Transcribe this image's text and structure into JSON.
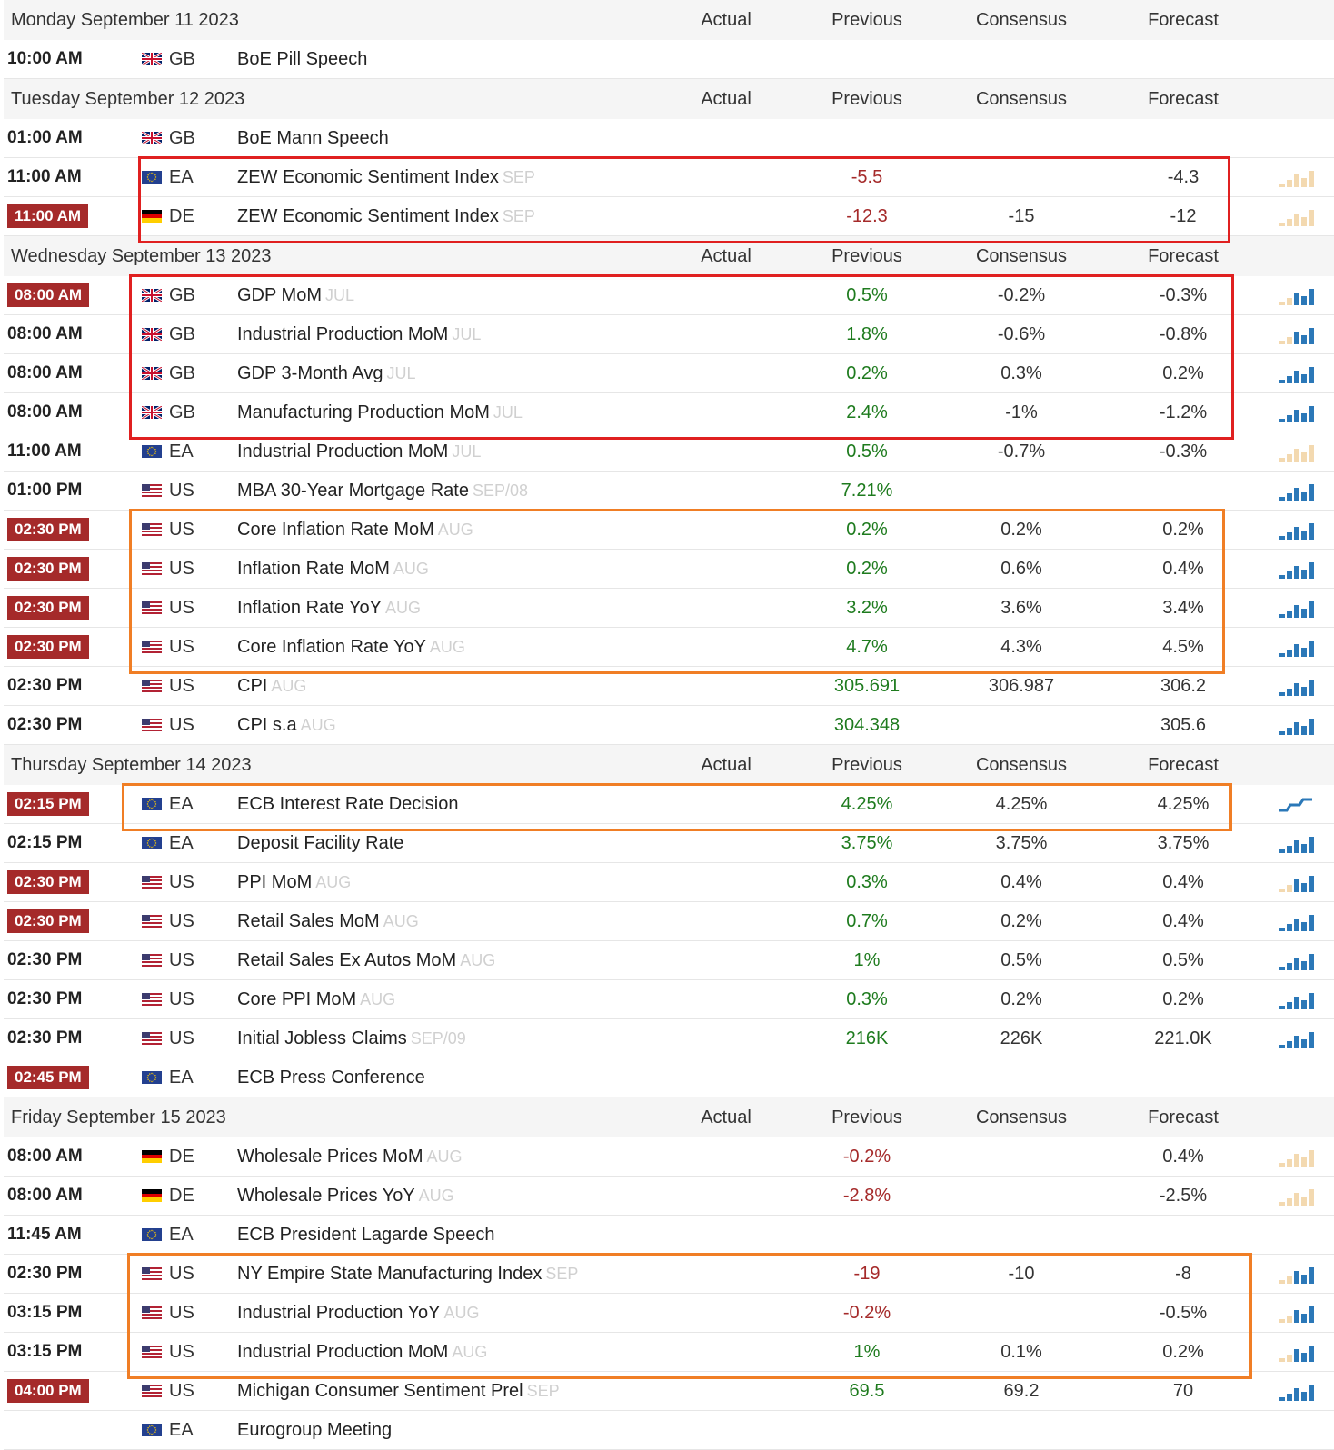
{
  "columns": {
    "actual": "Actual",
    "previous": "Previous",
    "consensus": "Consensus",
    "forecast": "Forecast"
  },
  "days": [
    {
      "title": "Monday September 11 2023",
      "events": [
        {
          "time": "10:00 AM",
          "hl": false,
          "country": "GB",
          "flag": "gb",
          "event": "BoE Pill Speech",
          "ref": "",
          "previous": "",
          "prev_tone": "",
          "consensus": "",
          "forecast": "",
          "spark": ""
        }
      ]
    },
    {
      "title": "Tuesday September 12 2023",
      "events": [
        {
          "time": "01:00 AM",
          "hl": false,
          "country": "GB",
          "flag": "gb",
          "event": "BoE Mann Speech",
          "ref": "",
          "previous": "",
          "prev_tone": "",
          "consensus": "",
          "forecast": "",
          "spark": ""
        },
        {
          "time": "11:00 AM",
          "hl": false,
          "country": "EA",
          "flag": "eu",
          "event": "ZEW Economic Sentiment Index",
          "ref": "SEP",
          "previous": "-5.5",
          "prev_tone": "neg",
          "consensus": "",
          "forecast": "-4.3",
          "spark": "tan"
        },
        {
          "time": "11:00 AM",
          "hl": true,
          "country": "DE",
          "flag": "de",
          "event": "ZEW Economic Sentiment Index",
          "ref": "SEP",
          "previous": "-12.3",
          "prev_tone": "neg",
          "consensus": "-15",
          "forecast": "-12",
          "spark": "tan"
        }
      ]
    },
    {
      "title": "Wednesday September 13 2023",
      "events": [
        {
          "time": "08:00 AM",
          "hl": true,
          "country": "GB",
          "flag": "gb",
          "event": "GDP MoM",
          "ref": "JUL",
          "previous": "0.5%",
          "prev_tone": "pos",
          "consensus": "-0.2%",
          "forecast": "-0.3%",
          "spark": "mix"
        },
        {
          "time": "08:00 AM",
          "hl": false,
          "country": "GB",
          "flag": "gb",
          "event": "Industrial Production MoM",
          "ref": "JUL",
          "previous": "1.8%",
          "prev_tone": "pos",
          "consensus": "-0.6%",
          "forecast": "-0.8%",
          "spark": "mix"
        },
        {
          "time": "08:00 AM",
          "hl": false,
          "country": "GB",
          "flag": "gb",
          "event": "GDP 3-Month Avg",
          "ref": "JUL",
          "previous": "0.2%",
          "prev_tone": "pos",
          "consensus": "0.3%",
          "forecast": "0.2%",
          "spark": "blue"
        },
        {
          "time": "08:00 AM",
          "hl": false,
          "country": "GB",
          "flag": "gb",
          "event": "Manufacturing Production MoM",
          "ref": "JUL",
          "previous": "2.4%",
          "prev_tone": "pos",
          "consensus": "-1%",
          "forecast": "-1.2%",
          "spark": "blue"
        },
        {
          "time": "11:00 AM",
          "hl": false,
          "country": "EA",
          "flag": "eu",
          "event": "Industrial Production MoM",
          "ref": "JUL",
          "previous": "0.5%",
          "prev_tone": "pos",
          "consensus": "-0.7%",
          "forecast": "-0.3%",
          "spark": "tan"
        },
        {
          "time": "01:00 PM",
          "hl": false,
          "country": "US",
          "flag": "us",
          "event": "MBA 30-Year Mortgage Rate",
          "ref": "SEP/08",
          "previous": "7.21%",
          "prev_tone": "pos",
          "consensus": "",
          "forecast": "",
          "spark": "blue"
        },
        {
          "time": "02:30 PM",
          "hl": true,
          "country": "US",
          "flag": "us",
          "event": "Core Inflation Rate MoM",
          "ref": "AUG",
          "previous": "0.2%",
          "prev_tone": "pos",
          "consensus": "0.2%",
          "forecast": "0.2%",
          "spark": "blue"
        },
        {
          "time": "02:30 PM",
          "hl": true,
          "country": "US",
          "flag": "us",
          "event": "Inflation Rate MoM",
          "ref": "AUG",
          "previous": "0.2%",
          "prev_tone": "pos",
          "consensus": "0.6%",
          "forecast": "0.4%",
          "spark": "blue"
        },
        {
          "time": "02:30 PM",
          "hl": true,
          "country": "US",
          "flag": "us",
          "event": "Inflation Rate YoY",
          "ref": "AUG",
          "previous": "3.2%",
          "prev_tone": "pos",
          "consensus": "3.6%",
          "forecast": "3.4%",
          "spark": "blue"
        },
        {
          "time": "02:30 PM",
          "hl": true,
          "country": "US",
          "flag": "us",
          "event": "Core Inflation Rate YoY",
          "ref": "AUG",
          "previous": "4.7%",
          "prev_tone": "pos",
          "consensus": "4.3%",
          "forecast": "4.5%",
          "spark": "blue"
        },
        {
          "time": "02:30 PM",
          "hl": false,
          "country": "US",
          "flag": "us",
          "event": "CPI",
          "ref": "AUG",
          "previous": "305.691",
          "prev_tone": "pos",
          "consensus": "306.987",
          "forecast": "306.2",
          "spark": "blue"
        },
        {
          "time": "02:30 PM",
          "hl": false,
          "country": "US",
          "flag": "us",
          "event": "CPI s.a",
          "ref": "AUG",
          "previous": "304.348",
          "prev_tone": "pos",
          "consensus": "",
          "forecast": "305.6",
          "spark": "blue"
        }
      ]
    },
    {
      "title": "Thursday September 14 2023",
      "events": [
        {
          "time": "02:15 PM",
          "hl": true,
          "country": "EA",
          "flag": "eu",
          "event": "ECB Interest Rate Decision",
          "ref": "",
          "previous": "4.25%",
          "prev_tone": "pos",
          "consensus": "4.25%",
          "forecast": "4.25%",
          "spark": "step"
        },
        {
          "time": "02:15 PM",
          "hl": false,
          "country": "EA",
          "flag": "eu",
          "event": "Deposit Facility Rate",
          "ref": "",
          "previous": "3.75%",
          "prev_tone": "pos",
          "consensus": "3.75%",
          "forecast": "3.75%",
          "spark": "blue"
        },
        {
          "time": "02:30 PM",
          "hl": true,
          "country": "US",
          "flag": "us",
          "event": "PPI MoM",
          "ref": "AUG",
          "previous": "0.3%",
          "prev_tone": "pos",
          "consensus": "0.4%",
          "forecast": "0.4%",
          "spark": "mix"
        },
        {
          "time": "02:30 PM",
          "hl": true,
          "country": "US",
          "flag": "us",
          "event": "Retail Sales MoM",
          "ref": "AUG",
          "previous": "0.7%",
          "prev_tone": "pos",
          "consensus": "0.2%",
          "forecast": "0.4%",
          "spark": "blue"
        },
        {
          "time": "02:30 PM",
          "hl": false,
          "country": "US",
          "flag": "us",
          "event": "Retail Sales Ex Autos MoM",
          "ref": "AUG",
          "previous": "1%",
          "prev_tone": "pos",
          "consensus": "0.5%",
          "forecast": "0.5%",
          "spark": "blue"
        },
        {
          "time": "02:30 PM",
          "hl": false,
          "country": "US",
          "flag": "us",
          "event": "Core PPI MoM",
          "ref": "AUG",
          "previous": "0.3%",
          "prev_tone": "pos",
          "consensus": "0.2%",
          "forecast": "0.2%",
          "spark": "blue"
        },
        {
          "time": "02:30 PM",
          "hl": false,
          "country": "US",
          "flag": "us",
          "event": "Initial Jobless Claims",
          "ref": "SEP/09",
          "previous": "216K",
          "prev_tone": "pos",
          "consensus": "226K",
          "forecast": "221.0K",
          "spark": "blue"
        },
        {
          "time": "02:45 PM",
          "hl": true,
          "country": "EA",
          "flag": "eu",
          "event": "ECB Press Conference",
          "ref": "",
          "previous": "",
          "prev_tone": "",
          "consensus": "",
          "forecast": "",
          "spark": ""
        }
      ]
    },
    {
      "title": "Friday September 15 2023",
      "events": [
        {
          "time": "08:00 AM",
          "hl": false,
          "country": "DE",
          "flag": "de",
          "event": "Wholesale Prices MoM",
          "ref": "AUG",
          "previous": "-0.2%",
          "prev_tone": "neg",
          "consensus": "",
          "forecast": "0.4%",
          "spark": "tan"
        },
        {
          "time": "08:00 AM",
          "hl": false,
          "country": "DE",
          "flag": "de",
          "event": "Wholesale Prices YoY",
          "ref": "AUG",
          "previous": "-2.8%",
          "prev_tone": "neg",
          "consensus": "",
          "forecast": "-2.5%",
          "spark": "tan"
        },
        {
          "time": "11:45 AM",
          "hl": false,
          "country": "EA",
          "flag": "eu",
          "event": "ECB President Lagarde Speech",
          "ref": "",
          "previous": "",
          "prev_tone": "",
          "consensus": "",
          "forecast": "",
          "spark": ""
        },
        {
          "time": "02:30 PM",
          "hl": false,
          "country": "US",
          "flag": "us",
          "event": "NY Empire State Manufacturing Index",
          "ref": "SEP",
          "previous": "-19",
          "prev_tone": "neg",
          "consensus": "-10",
          "forecast": "-8",
          "spark": "mix"
        },
        {
          "time": "03:15 PM",
          "hl": false,
          "country": "US",
          "flag": "us",
          "event": "Industrial Production YoY",
          "ref": "AUG",
          "previous": "-0.2%",
          "prev_tone": "neg",
          "consensus": "",
          "forecast": "-0.5%",
          "spark": "mix"
        },
        {
          "time": "03:15 PM",
          "hl": false,
          "country": "US",
          "flag": "us",
          "event": "Industrial Production MoM",
          "ref": "AUG",
          "previous": "1%",
          "prev_tone": "pos",
          "consensus": "0.1%",
          "forecast": "0.2%",
          "spark": "mix"
        },
        {
          "time": "04:00 PM",
          "hl": true,
          "country": "US",
          "flag": "us",
          "event": "Michigan Consumer Sentiment Prel",
          "ref": "SEP",
          "previous": "69.5",
          "prev_tone": "pos",
          "consensus": "69.2",
          "forecast": "70",
          "spark": "blue"
        },
        {
          "time": "",
          "hl": false,
          "country": "EA",
          "flag": "eu",
          "event": "Eurogroup Meeting",
          "ref": "",
          "previous": "",
          "prev_tone": "",
          "consensus": "",
          "forecast": "",
          "spark": ""
        }
      ]
    }
  ],
  "colors": {
    "highlight_time": "#a52a2a",
    "positive": "#1e7b1e",
    "negative": "#a52a2a",
    "box_red": "#e02020",
    "box_orange": "#f07e25",
    "spark_blue": "#2b78b8",
    "spark_tan": "#f3d9b0"
  }
}
